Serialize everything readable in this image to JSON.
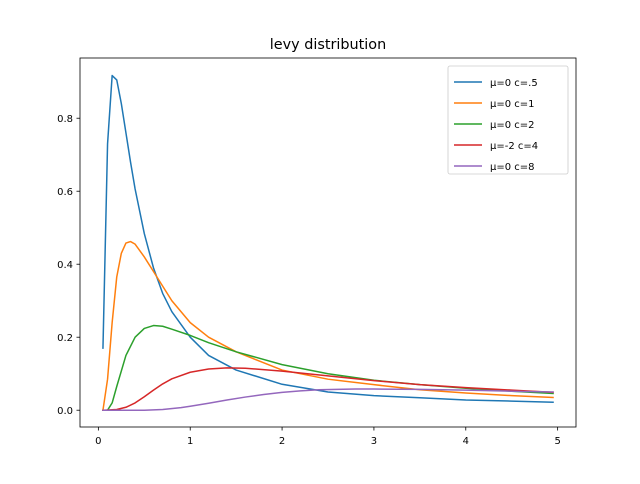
{
  "chart_data": {
    "type": "line",
    "title": "levy distribution",
    "xlabel": "",
    "ylabel": "",
    "xlim": [
      -0.2,
      5.2
    ],
    "ylim": [
      -0.046,
      0.965
    ],
    "xticks": [
      0,
      1,
      2,
      3,
      4,
      5
    ],
    "xtick_labels": [
      "0",
      "1",
      "2",
      "3",
      "4",
      "5"
    ],
    "yticks": [
      0.0,
      0.2,
      0.4,
      0.6,
      0.8
    ],
    "ytick_labels": [
      "0.0",
      "0.2",
      "0.4",
      "0.6",
      "0.8"
    ],
    "grid": false,
    "legend_position": "top-right",
    "series": [
      {
        "name": "μ=0 c=.5",
        "color": "#1f77b4",
        "x": [
          0.05,
          0.1,
          0.15,
          0.2,
          0.25,
          0.3,
          0.35,
          0.4,
          0.5,
          0.6,
          0.7,
          0.8,
          1.0,
          1.2,
          1.5,
          2.0,
          2.5,
          3.0,
          3.5,
          4.0,
          4.5,
          4.95
        ],
        "y": [
          0.17,
          0.73,
          0.917,
          0.905,
          0.84,
          0.76,
          0.68,
          0.606,
          0.484,
          0.39,
          0.32,
          0.27,
          0.2,
          0.15,
          0.11,
          0.071,
          0.05,
          0.04,
          0.034,
          0.028,
          0.025,
          0.022
        ]
      },
      {
        "name": "μ=0 c=1",
        "color": "#ff7f0e",
        "x": [
          0.05,
          0.1,
          0.15,
          0.2,
          0.25,
          0.3,
          0.35,
          0.4,
          0.5,
          0.6,
          0.8,
          1.0,
          1.2,
          1.5,
          2.0,
          2.5,
          3.0,
          3.5,
          4.0,
          4.5,
          4.95
        ],
        "y": [
          0.0,
          0.085,
          0.24,
          0.365,
          0.43,
          0.458,
          0.462,
          0.455,
          0.42,
          0.38,
          0.3,
          0.24,
          0.2,
          0.16,
          0.11,
          0.085,
          0.07,
          0.056,
          0.047,
          0.04,
          0.035
        ]
      },
      {
        "name": "μ=0 c=2",
        "color": "#2ca02c",
        "x": [
          0.05,
          0.1,
          0.15,
          0.2,
          0.3,
          0.4,
          0.5,
          0.6,
          0.7,
          0.8,
          1.0,
          1.2,
          1.5,
          2.0,
          2.5,
          3.0,
          3.5,
          4.0,
          4.5,
          4.95
        ],
        "y": [
          0.0,
          0.0,
          0.02,
          0.065,
          0.15,
          0.2,
          0.224,
          0.232,
          0.23,
          0.222,
          0.205,
          0.185,
          0.16,
          0.125,
          0.1,
          0.082,
          0.07,
          0.06,
          0.052,
          0.046
        ]
      },
      {
        "name": "μ=-2 c=4",
        "color": "#d62728",
        "x": [
          0.05,
          0.2,
          0.3,
          0.4,
          0.5,
          0.6,
          0.7,
          0.8,
          1.0,
          1.2,
          1.4,
          1.6,
          2.0,
          2.5,
          3.0,
          3.5,
          4.0,
          4.5,
          4.95
        ],
        "y": [
          0.0,
          0.002,
          0.008,
          0.02,
          0.037,
          0.055,
          0.072,
          0.086,
          0.104,
          0.113,
          0.116,
          0.115,
          0.107,
          0.094,
          0.081,
          0.07,
          0.062,
          0.055,
          0.049
        ]
      },
      {
        "name": "μ=0 c=8",
        "color": "#9467bd",
        "x": [
          0.05,
          0.3,
          0.5,
          0.7,
          0.9,
          1.0,
          1.2,
          1.4,
          1.6,
          1.8,
          2.0,
          2.2,
          2.4,
          2.6,
          2.8,
          3.0,
          3.5,
          4.0,
          4.5,
          4.95
        ],
        "y": [
          0.0,
          0.0,
          0.0,
          0.002,
          0.007,
          0.011,
          0.019,
          0.028,
          0.036,
          0.043,
          0.049,
          0.053,
          0.056,
          0.057,
          0.058,
          0.058,
          0.057,
          0.055,
          0.052,
          0.05
        ]
      }
    ]
  }
}
